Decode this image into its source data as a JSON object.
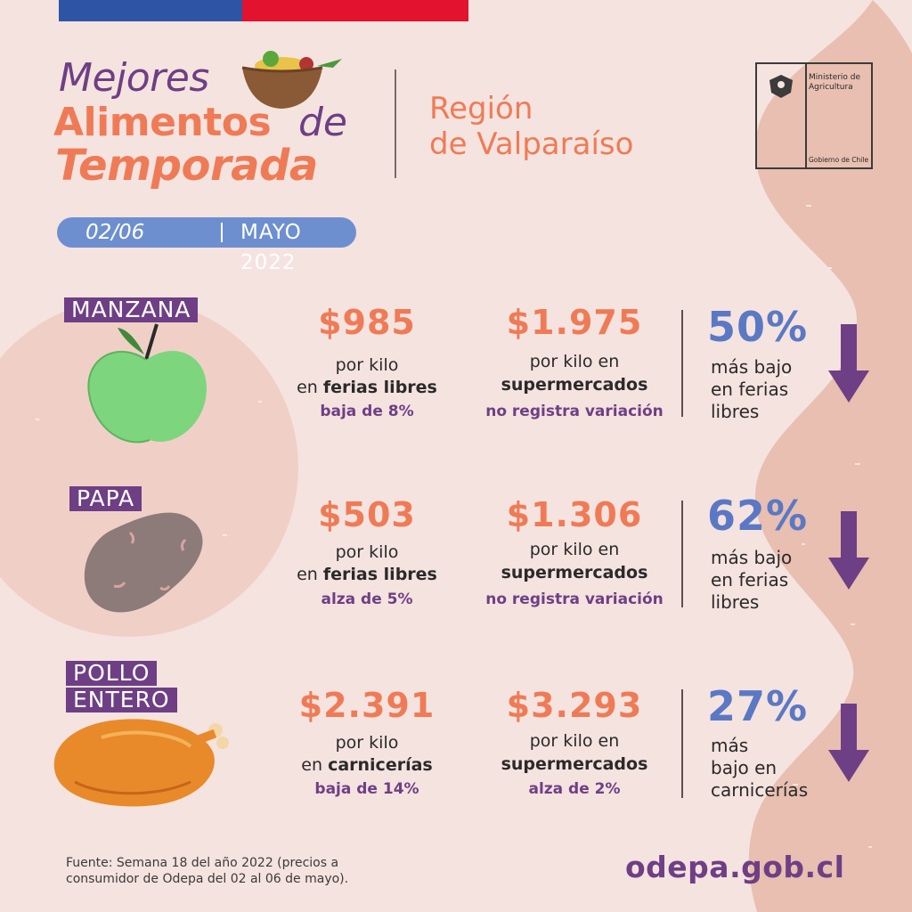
{
  "header": {
    "title_line1": "Mejores",
    "title_line2a": "Alimentos",
    "title_line2b": "de",
    "title_line3": "Temporada",
    "region_line1": "Región",
    "region_line2": "de Valparaíso",
    "ministry": "Ministerio de Agricultura",
    "government": "Gobierno de Chile",
    "date_week": "02/06",
    "date_month": "MAYO 2022"
  },
  "colors": {
    "background": "#f5e3df",
    "orange": "#ef7b56",
    "purple": "#6e3f85",
    "blue": "#5b78c4",
    "flag_blue": "#2e55a5",
    "flag_red": "#e3122e"
  },
  "items": [
    {
      "name": "MANZANA",
      "feria_price": "$985",
      "feria_unit": "por kilo",
      "feria_prefix": "en",
      "feria_place": "ferias libres",
      "feria_variation": "baja de 8%",
      "super_price": "$1.975",
      "super_unit": "por kilo en",
      "super_place": "supermercados",
      "super_variation": "no registra variación",
      "pct": "50%",
      "pct_desc_1": "más bajo",
      "pct_desc_2": "en ferias",
      "pct_desc_3": "libres",
      "icon": "apple-icon"
    },
    {
      "name": "PAPA",
      "feria_price": "$503",
      "feria_unit": "por kilo",
      "feria_prefix": "en",
      "feria_place": "ferias libres",
      "feria_variation": "alza de 5%",
      "super_price": "$1.306",
      "super_unit": "por kilo en",
      "super_place": "supermercados",
      "super_variation": "no registra variación",
      "pct": "62%",
      "pct_desc_1": "más bajo",
      "pct_desc_2": "en ferias",
      "pct_desc_3": "libres",
      "icon": "potato-icon"
    },
    {
      "name_line1": "POLLO",
      "name_line2": "ENTERO",
      "feria_price": "$2.391",
      "feria_unit": "por kilo",
      "feria_prefix": "en",
      "feria_place": "carnicerías",
      "feria_variation": "baja de 14%",
      "super_price": "$3.293",
      "super_unit": "por kilo en",
      "super_place": "supermercados",
      "super_variation": "alza de 2%",
      "pct": "27%",
      "pct_desc_1": "más",
      "pct_desc_2": "bajo en",
      "pct_desc_3": "carnicerías",
      "icon": "chicken-icon"
    }
  ],
  "footer": {
    "source_line1": "Fuente: Semana 18 del año 2022 (precios a",
    "source_line2": "consumidor de Odepa del 02 al 06 de mayo).",
    "website": "odepa.gob.cl"
  }
}
